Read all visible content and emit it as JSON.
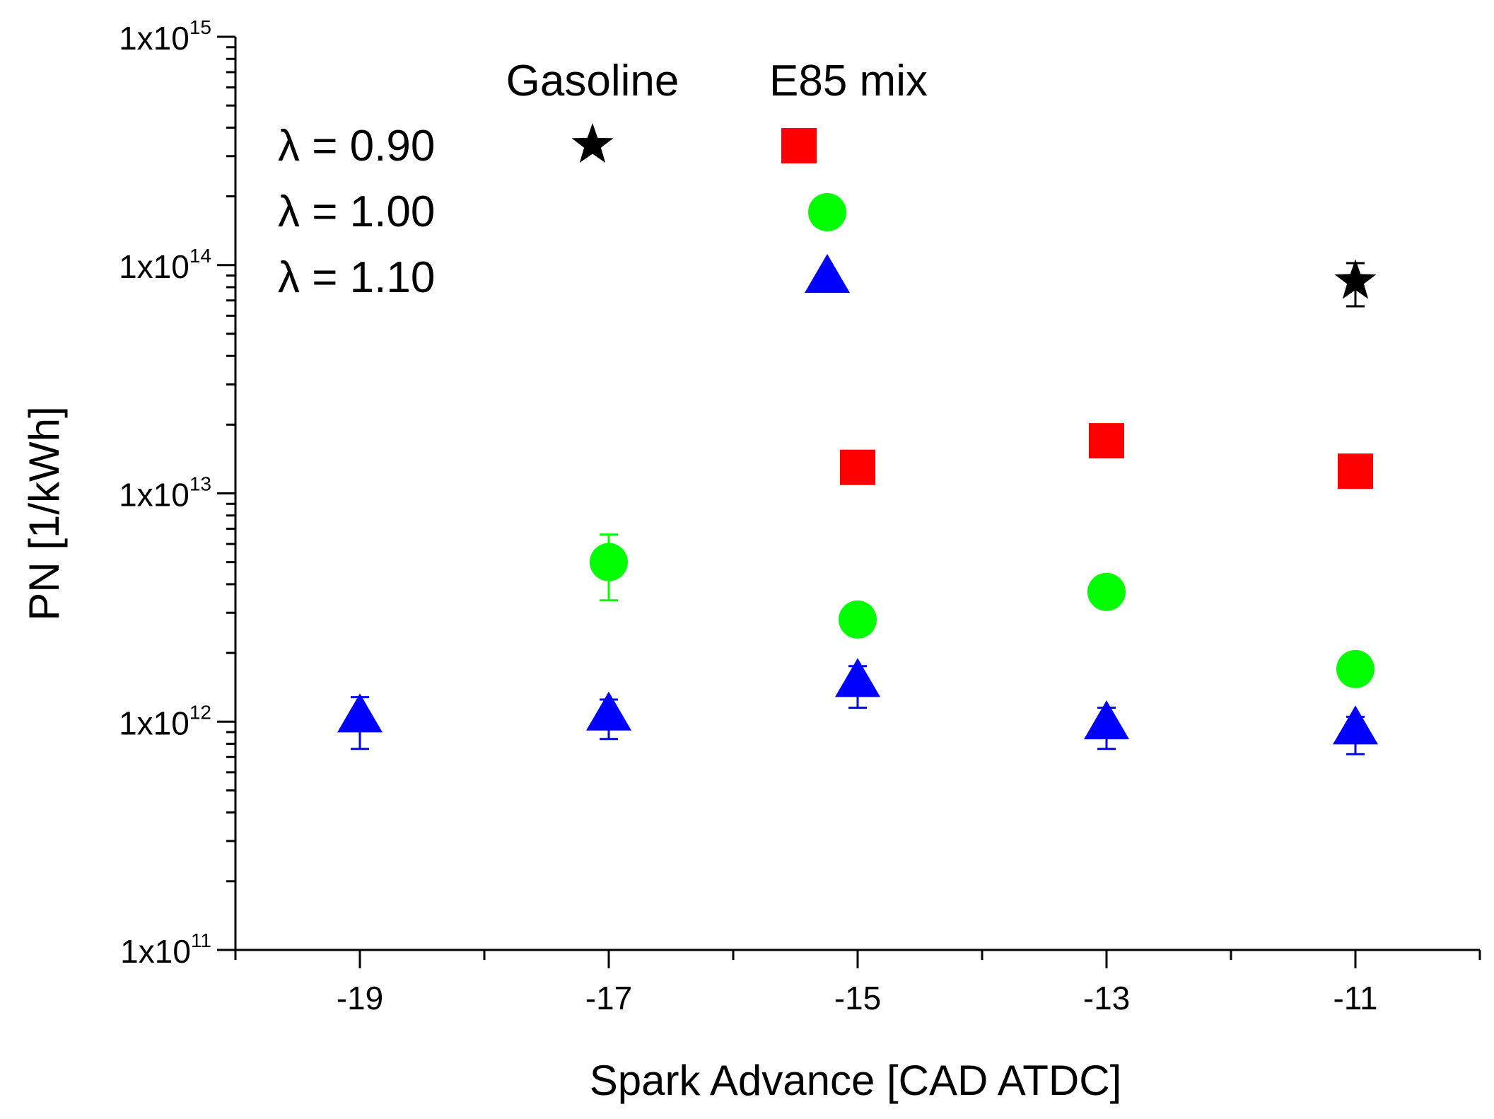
{
  "chart_data": {
    "type": "scatter",
    "xlabel": "Spark Advance [CAD ATDC]",
    "ylabel": "PN [1/kWh]",
    "xlim": [
      -20,
      -10
    ],
    "ylim": [
      100000000000.0,
      1000000000000000.0
    ],
    "yscale": "log",
    "x_tick_labels": [
      "-19",
      "-17",
      "-15",
      "-13",
      "-11"
    ],
    "y_tick_labels": [
      {
        "base": "1x10",
        "exp": "11"
      },
      {
        "base": "1x10",
        "exp": "12"
      },
      {
        "base": "1x10",
        "exp": "13"
      },
      {
        "base": "1x10",
        "exp": "14"
      },
      {
        "base": "1x10",
        "exp": "15"
      }
    ],
    "legend": {
      "placement": "top-left",
      "col_headers": [
        "Gasoline",
        "E85 mix"
      ],
      "rows": [
        "λ = 0.90",
        "λ = 1.00",
        "λ = 1.10"
      ]
    },
    "series": [
      {
        "name": "Gasoline λ = 0.90",
        "marker": "star",
        "color": "#000000",
        "points": [
          {
            "x": -11,
            "y": 85000000000000.0,
            "err_lo": 66000000000000.0,
            "err_hi": 102000000000000.0
          }
        ]
      },
      {
        "name": "E85 mix λ = 0.90",
        "marker": "square",
        "color": "#ff0000",
        "points": [
          {
            "x": -15,
            "y": 13000000000000.0
          },
          {
            "x": -13,
            "y": 17000000000000.0
          },
          {
            "x": -11,
            "y": 12500000000000.0
          }
        ]
      },
      {
        "name": "E85 mix λ = 1.00",
        "marker": "circle",
        "color": "#00ff00",
        "points": [
          {
            "x": -17,
            "y": 5000000000000.0,
            "err_lo": 3400000000000.0,
            "err_hi": 6600000000000.0
          },
          {
            "x": -15,
            "y": 2800000000000.0
          },
          {
            "x": -13,
            "y": 3700000000000.0
          },
          {
            "x": -11,
            "y": 1700000000000.0
          }
        ]
      },
      {
        "name": "E85 mix λ = 1.10",
        "marker": "triangle",
        "color": "#0000ff",
        "points": [
          {
            "x": -19,
            "y": 1050000000000.0,
            "err_lo": 760000000000.0,
            "err_hi": 1280000000000.0
          },
          {
            "x": -17,
            "y": 1070000000000.0,
            "err_lo": 840000000000.0,
            "err_hi": 1250000000000.0
          },
          {
            "x": -15,
            "y": 1500000000000.0,
            "err_lo": 1150000000000.0,
            "err_hi": 1750000000000.0
          },
          {
            "x": -13,
            "y": 980000000000.0,
            "err_lo": 760000000000.0,
            "err_hi": 1150000000000.0
          },
          {
            "x": -11,
            "y": 930000000000.0,
            "err_lo": 720000000000.0,
            "err_hi": 1050000000000.0
          }
        ]
      }
    ]
  }
}
